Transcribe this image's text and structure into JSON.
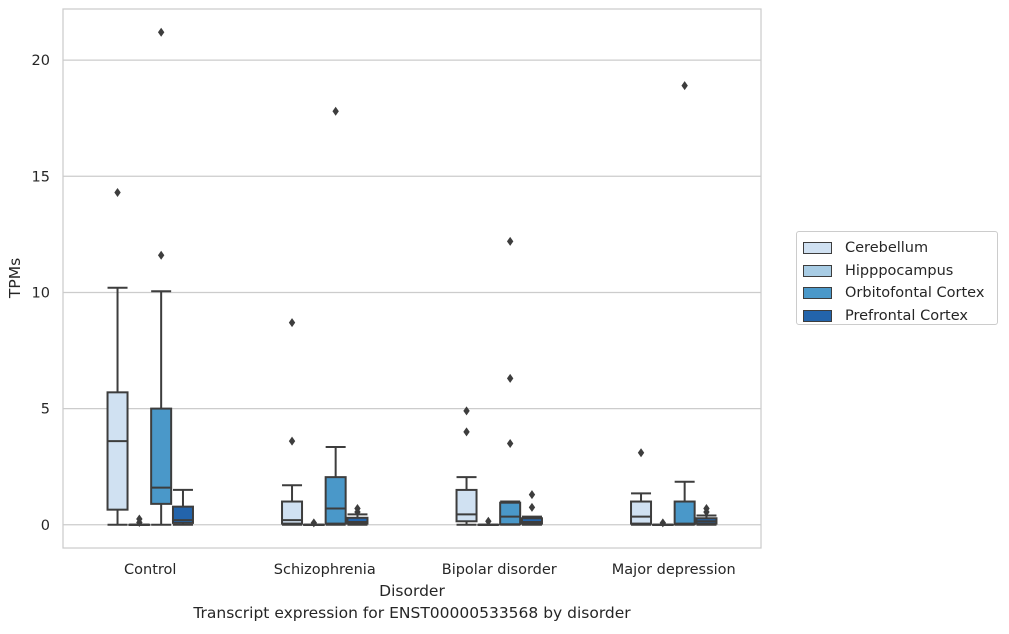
{
  "caption": "Transcript expression for ENST00000533568 by disorder",
  "legend": {
    "items": [
      {
        "label": "Cerebellum",
        "color": "#d0e1f2"
      },
      {
        "label": "Hipppocampus",
        "color": "#a8cce4"
      },
      {
        "label": "Orbitofontal Cortex",
        "color": "#4a98c9"
      },
      {
        "label": "Prefrontal Cortex",
        "color": "#2364ab"
      }
    ]
  },
  "chart_data": {
    "type": "boxplot",
    "xlabel": "Disorder",
    "ylabel": "TPMs",
    "ylim": [
      -1.0,
      22.2
    ],
    "yticks": [
      0,
      5,
      10,
      15,
      20
    ],
    "grid": true,
    "legend_position": "right",
    "categories": [
      "Control",
      "Schizophrenia",
      "Bipolar disorder",
      "Major depression"
    ],
    "series": [
      {
        "name": "Cerebellum",
        "color": "#d0e1f2",
        "boxes": [
          {
            "whislo": 0,
            "q1": 0.65,
            "med": 3.6,
            "q3": 5.7,
            "whishi": 10.2,
            "fliers": [
              14.3
            ]
          },
          {
            "whislo": 0,
            "q1": 0.05,
            "med": 0.2,
            "q3": 1.0,
            "whishi": 1.7,
            "fliers": [
              3.6,
              8.7
            ]
          },
          {
            "whislo": 0,
            "q1": 0.15,
            "med": 0.45,
            "q3": 1.5,
            "whishi": 2.05,
            "fliers": [
              4.0,
              4.9
            ]
          },
          {
            "whislo": 0,
            "q1": 0.05,
            "med": 0.35,
            "q3": 1.0,
            "whishi": 1.35,
            "fliers": [
              3.1
            ]
          }
        ]
      },
      {
        "name": "Hipppocampus",
        "color": "#a8cce4",
        "boxes": [
          {
            "whislo": 0,
            "q1": 0,
            "med": 0,
            "q3": 0,
            "whishi": 0,
            "fliers": [
              0.1,
              0.25
            ]
          },
          {
            "whislo": 0,
            "q1": 0,
            "med": 0,
            "q3": 0,
            "whishi": 0,
            "fliers": [
              0.08
            ]
          },
          {
            "whislo": 0,
            "q1": 0,
            "med": 0,
            "q3": 0,
            "whishi": 0,
            "fliers": [
              0.15
            ]
          },
          {
            "whislo": 0,
            "q1": 0,
            "med": 0,
            "q3": 0,
            "whishi": 0,
            "fliers": [
              0.08
            ]
          }
        ]
      },
      {
        "name": "Orbitofontal Cortex",
        "color": "#4a98c9",
        "boxes": [
          {
            "whislo": 0,
            "q1": 0.9,
            "med": 1.6,
            "q3": 5.0,
            "whishi": 10.05,
            "fliers": [
              11.6,
              21.2
            ]
          },
          {
            "whislo": 0,
            "q1": 0.05,
            "med": 0.7,
            "q3": 2.05,
            "whishi": 3.35,
            "fliers": [
              17.8
            ]
          },
          {
            "whislo": 0,
            "q1": 0.02,
            "med": 0.35,
            "q3": 0.95,
            "whishi": 1.0,
            "fliers": [
              3.5,
              6.3,
              12.2
            ]
          },
          {
            "whislo": 0,
            "q1": 0.02,
            "med": 0.05,
            "q3": 1.0,
            "whishi": 1.85,
            "fliers": [
              18.9
            ]
          }
        ]
      },
      {
        "name": "Prefrontal Cortex",
        "color": "#2364ab",
        "boxes": [
          {
            "whislo": 0,
            "q1": 0.08,
            "med": 0.2,
            "q3": 0.78,
            "whishi": 1.5,
            "fliers": []
          },
          {
            "whislo": 0,
            "q1": 0.05,
            "med": 0.12,
            "q3": 0.3,
            "whishi": 0.45,
            "fliers": [
              0.55,
              0.7
            ]
          },
          {
            "whislo": 0,
            "q1": 0.05,
            "med": 0.12,
            "q3": 0.28,
            "whishi": 0.35,
            "fliers": [
              0.75,
              1.3
            ]
          },
          {
            "whislo": 0,
            "q1": 0.05,
            "med": 0.15,
            "q3": 0.28,
            "whishi": 0.4,
            "fliers": [
              0.55,
              0.7
            ]
          }
        ]
      }
    ]
  }
}
